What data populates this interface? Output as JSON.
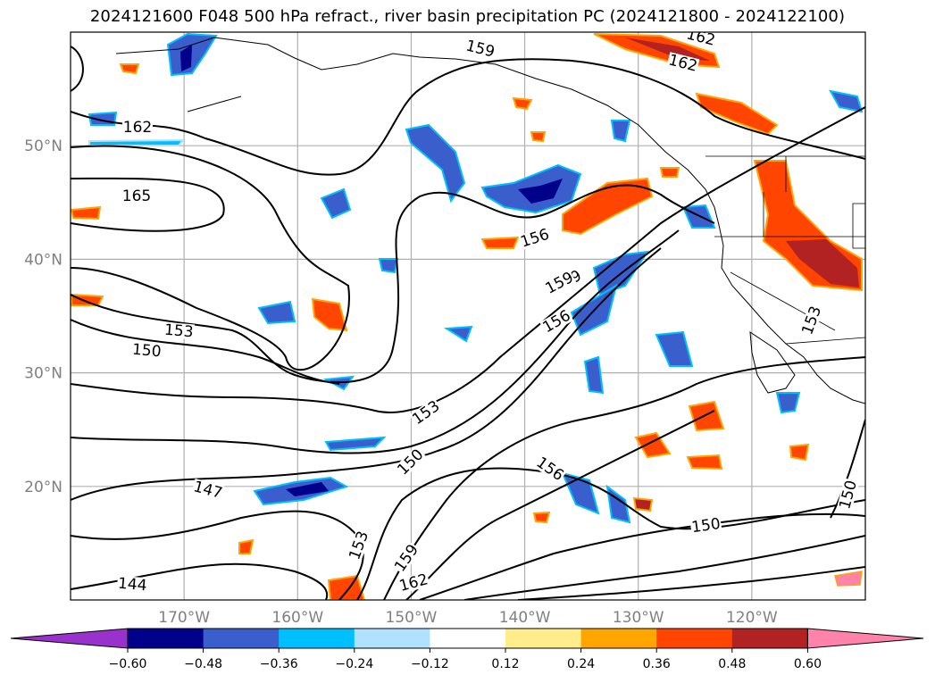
{
  "title": "2024121600 F048 500 hPa refract., river basin precipitation PC (2024121800 - 2024122100)",
  "map": {
    "lon_range": [
      -180,
      -110
    ],
    "lat_range": [
      10,
      60
    ],
    "lat_ticks": [
      {
        "lat": 50,
        "label": "50°N"
      },
      {
        "lat": 40,
        "label": "40°N"
      },
      {
        "lat": 30,
        "label": "30°N"
      },
      {
        "lat": 20,
        "label": "20°N"
      }
    ],
    "lon_ticks": [
      {
        "lon": -170,
        "label": "170°W"
      },
      {
        "lon": -160,
        "label": "160°W"
      },
      {
        "lon": -150,
        "label": "150°W"
      },
      {
        "lon": -140,
        "label": "140°W"
      },
      {
        "lon": -130,
        "label": "130°W"
      },
      {
        "lon": -120,
        "label": "120°W"
      }
    ],
    "grid": true,
    "contour_labels": [
      "162",
      "162",
      "159",
      "165",
      "156",
      "159",
      "156",
      "153",
      "150",
      "153",
      "150",
      "147",
      "153",
      "159",
      "162",
      "156",
      "150",
      "153",
      "150",
      "144",
      "159",
      "162"
    ]
  },
  "colorbar": {
    "ticks": [
      "−0.60",
      "−0.48",
      "−0.36",
      "−0.24",
      "−0.12",
      "0.12",
      "0.24",
      "0.36",
      "0.48",
      "0.60"
    ],
    "colors": [
      "#9932cc",
      "#00008b",
      "#3a5fcd",
      "#00bfff",
      "#b0e2ff",
      "#ffffff",
      "#ffec8b",
      "#ffa500",
      "#ff4500",
      "#b22222",
      "#ff82ab"
    ]
  }
}
